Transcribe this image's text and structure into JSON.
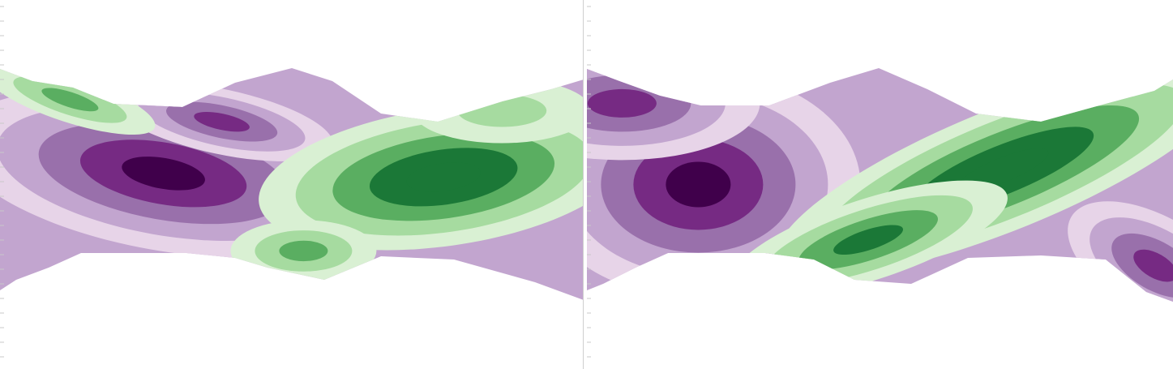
{
  "chart_data": [
    {
      "type": "heatmap",
      "title": "",
      "xlabel": "",
      "ylabel": "",
      "colormap": "PRGn",
      "levels": [
        "#40004b",
        "#762a83",
        "#9970ab",
        "#c2a5cf",
        "#e7d4e8",
        "#f7f7f7",
        "#d9f0d3",
        "#a6dba0",
        "#5aae61",
        "#1b7837"
      ],
      "features": [
        {
          "kind": "low",
          "value": -1.0,
          "x": 0.28,
          "y": 0.47
        },
        {
          "kind": "low",
          "value": -0.8,
          "x": 0.38,
          "y": 0.33
        },
        {
          "kind": "high",
          "value": 0.9,
          "x": 0.76,
          "y": 0.48
        },
        {
          "kind": "high",
          "value": 0.6,
          "x": 0.52,
          "y": 0.68
        },
        {
          "kind": "high",
          "value": 0.5,
          "x": 0.12,
          "y": 0.27
        },
        {
          "kind": "high",
          "value": 0.45,
          "x": 0.86,
          "y": 0.3
        }
      ]
    },
    {
      "type": "heatmap",
      "title": "",
      "xlabel": "",
      "ylabel": "",
      "colormap": "PRGn",
      "levels": [
        "#40004b",
        "#762a83",
        "#9970ab",
        "#c2a5cf",
        "#e7d4e8",
        "#f7f7f7",
        "#d9f0d3",
        "#a6dba0",
        "#5aae61",
        "#1b7837"
      ],
      "features": [
        {
          "kind": "low",
          "value": -1.0,
          "x": 0.19,
          "y": 0.5
        },
        {
          "kind": "low",
          "value": -0.8,
          "x": 0.06,
          "y": 0.28
        },
        {
          "kind": "high",
          "value": 0.9,
          "x": 0.71,
          "y": 0.46
        },
        {
          "kind": "high",
          "value": 0.7,
          "x": 0.48,
          "y": 0.65
        },
        {
          "kind": "low",
          "value": -0.7,
          "x": 0.97,
          "y": 0.72
        }
      ]
    }
  ]
}
